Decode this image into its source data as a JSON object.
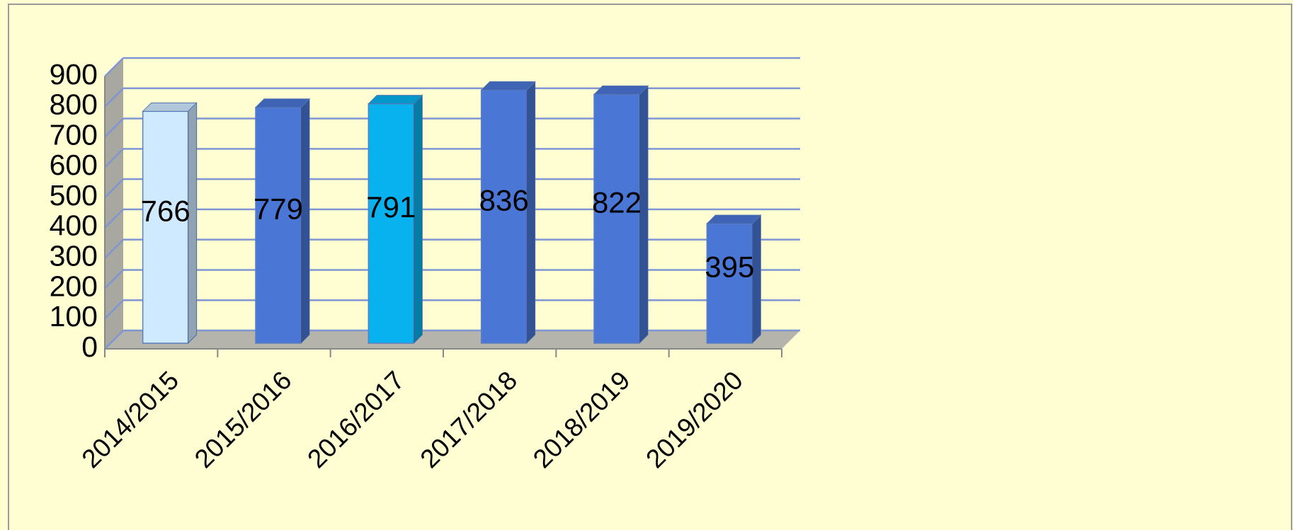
{
  "chart_data": {
    "type": "bar3d",
    "categories": [
      "2014/2015",
      "2015/2016",
      "2016/2017",
      "2017/2018",
      "2018/2019",
      "2019/2020"
    ],
    "values": [
      766,
      779,
      791,
      836,
      822,
      395
    ],
    "colors": [
      "#cfeaff",
      "#4a76d6",
      "#08b2ee",
      "#4a76d6",
      "#4a76d6",
      "#4a76d6"
    ],
    "ylim": [
      0,
      900
    ],
    "yticks": [
      0,
      100,
      200,
      300,
      400,
      500,
      600,
      700,
      800,
      900
    ],
    "grid": true,
    "grid_color": "#7f95d4"
  }
}
